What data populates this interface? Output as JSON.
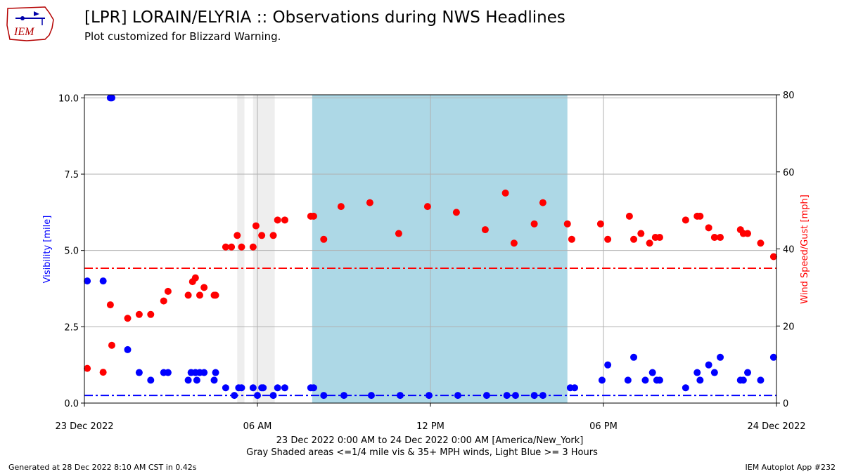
{
  "header": {
    "title": "[LPR] LORAIN/ELYRIA :: Observations during NWS Headlines",
    "subtitle": "Plot customized for Blizzard Warning.",
    "logo_text": "IEM"
  },
  "footer": {
    "generated": "Generated at 28 Dec 2022 8:10 AM CST in 0.42s",
    "app": "IEM Autoplot App #232"
  },
  "colors": {
    "visibility": "#0000ff",
    "wind": "#ff0000",
    "gray_shade": "#eeeeee",
    "blue_shade": "#add8e6",
    "grid": "#b0b0b0"
  },
  "chart_data": {
    "type": "scatter",
    "xlabel_line1": "23 Dec 2022 0:00 AM to 24 Dec 2022 0:00 AM [America/New_York]",
    "xlabel_line2": "Gray Shaded areas <=1/4 mile vis & 35+ MPH winds, Light Blue >= 3 Hours",
    "ylabel_left": "Visibility [mile]",
    "ylabel_right": "Wind Speed/Gust [mph]",
    "xlim_hours": [
      0,
      24
    ],
    "ylim_left": [
      0,
      10.1
    ],
    "ylim_right": [
      0,
      80
    ],
    "x_ticks": [
      {
        "hour": 0,
        "label": "23 Dec 2022"
      },
      {
        "hour": 6,
        "label": "06 AM"
      },
      {
        "hour": 12,
        "label": "12 PM"
      },
      {
        "hour": 18,
        "label": "06 PM"
      },
      {
        "hour": 24,
        "label": "24 Dec 2022"
      }
    ],
    "y_ticks_left": [
      "0.0",
      "2.5",
      "5.0",
      "7.5",
      "10.0"
    ],
    "y_ticks_right": [
      "0",
      "20",
      "40",
      "60",
      "80"
    ],
    "grid": true,
    "visibility_threshold_mile": 0.25,
    "wind_threshold_mph": 35,
    "shaded_gray_hours": [
      [
        5.3,
        5.55
      ],
      [
        5.85,
        6.6
      ]
    ],
    "shaded_blue_hours": [
      [
        7.9,
        16.75
      ]
    ],
    "series": [
      {
        "name": "Visibility",
        "axis": "left",
        "x_hours": [
          0.1,
          0.65,
          0.9,
          0.95,
          1.5,
          1.9,
          2.3,
          2.75,
          2.9,
          3.6,
          3.7,
          3.85,
          3.9,
          4.0,
          4.15,
          4.5,
          4.55,
          4.9,
          5.2,
          5.35,
          5.45,
          5.85,
          6.0,
          6.15,
          6.2,
          6.55,
          6.7,
          6.95,
          7.85,
          7.95,
          8.3,
          9.0,
          9.95,
          10.95,
          11.95,
          12.95,
          13.95,
          14.65,
          14.95,
          15.6,
          15.9,
          16.85,
          17.0,
          17.95,
          18.15,
          18.85,
          19.05,
          19.45,
          19.7,
          19.85,
          19.95,
          20.85,
          21.25,
          21.35,
          21.65,
          21.85,
          22.05,
          22.75,
          22.85,
          23.0,
          23.45,
          23.9
        ],
        "values": [
          4.0,
          4.0,
          10.0,
          10.0,
          1.75,
          1.0,
          0.75,
          1.0,
          1.0,
          0.75,
          1.0,
          1.0,
          0.75,
          1.0,
          1.0,
          0.75,
          1.0,
          0.5,
          0.25,
          0.5,
          0.5,
          0.5,
          0.25,
          0.5,
          0.5,
          0.25,
          0.5,
          0.5,
          0.5,
          0.5,
          0.25,
          0.25,
          0.25,
          0.25,
          0.25,
          0.25,
          0.25,
          0.25,
          0.25,
          0.25,
          0.25,
          0.5,
          0.5,
          0.75,
          1.25,
          0.75,
          1.5,
          0.75,
          1.0,
          0.75,
          0.75,
          0.5,
          1.0,
          0.75,
          1.25,
          1.0,
          1.5,
          0.75,
          0.75,
          1.0,
          0.75,
          1.5
        ]
      },
      {
        "name": "Wind Speed/Gust",
        "axis": "right",
        "x_hours": [
          0.1,
          0.65,
          0.9,
          0.95,
          1.5,
          1.9,
          2.3,
          2.75,
          2.9,
          3.6,
          3.75,
          3.85,
          4.0,
          4.15,
          4.5,
          4.55,
          4.9,
          5.1,
          5.3,
          5.45,
          5.85,
          5.95,
          6.15,
          6.55,
          6.7,
          6.95,
          7.85,
          7.95,
          8.3,
          8.9,
          9.9,
          10.9,
          11.9,
          12.9,
          13.9,
          14.6,
          14.9,
          15.6,
          15.9,
          16.75,
          16.9,
          17.9,
          18.15,
          18.9,
          19.05,
          19.3,
          19.6,
          19.8,
          19.95,
          20.85,
          21.25,
          21.35,
          21.65,
          21.85,
          22.05,
          22.75,
          22.85,
          23.0,
          23.45,
          23.9
        ],
        "values": [
          9,
          8,
          25.5,
          15,
          22,
          23,
          23,
          26.5,
          29,
          28,
          31.5,
          32.5,
          28,
          30,
          28,
          28,
          40.5,
          40.5,
          43.5,
          40.5,
          40.5,
          46,
          43.5,
          43.5,
          47.5,
          47.5,
          48.5,
          48.5,
          42.5,
          51,
          52,
          44,
          51,
          49.5,
          45,
          54.5,
          41.5,
          46.5,
          52,
          46.5,
          42.5,
          46.5,
          42.5,
          48.5,
          42.5,
          44,
          41.5,
          43,
          43,
          47.5,
          48.5,
          48.5,
          45.5,
          43,
          43,
          45,
          44,
          44,
          41.5,
          38
        ]
      }
    ]
  }
}
